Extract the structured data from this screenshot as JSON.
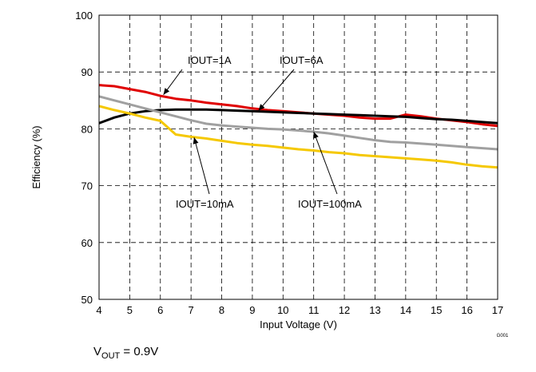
{
  "chart_data": {
    "type": "line",
    "xlabel": "Input Voltage (V)",
    "ylabel": "Efficiency (%)",
    "xlim": [
      4,
      17
    ],
    "ylim": [
      50,
      100
    ],
    "xticks": [
      "4",
      "5",
      "6",
      "7",
      "8",
      "9",
      "10",
      "11",
      "12",
      "13",
      "14",
      "15",
      "16",
      "17"
    ],
    "yticks": [
      "50",
      "60",
      "70",
      "80",
      "90",
      "100"
    ],
    "grid": "dashed",
    "series": [
      {
        "name": "IOUT=1A",
        "color": "#e00000",
        "x": [
          4,
          4.5,
          5,
          5.5,
          6,
          6.5,
          7,
          7.5,
          8,
          8.5,
          9,
          9.5,
          10,
          10.5,
          11,
          11.5,
          12,
          12.5,
          13,
          13.5,
          14,
          14.5,
          15,
          15.5,
          16,
          16.5,
          17
        ],
        "y": [
          87.7,
          87.5,
          87.0,
          86.5,
          85.8,
          85.3,
          85.0,
          84.6,
          84.3,
          84.0,
          83.6,
          83.3,
          83.1,
          82.9,
          82.7,
          82.5,
          82.3,
          82.0,
          81.8,
          81.8,
          82.5,
          82.2,
          81.8,
          81.5,
          81.2,
          80.8,
          80.5
        ]
      },
      {
        "name": "IOUT=6A",
        "color": "#000000",
        "x": [
          4,
          4.5,
          5,
          5.5,
          6,
          6.5,
          7,
          7.5,
          8,
          8.5,
          9,
          9.5,
          10,
          10.5,
          11,
          11.5,
          12,
          12.5,
          13,
          13.5,
          14,
          14.5,
          15,
          15.5,
          16,
          16.5,
          17
        ],
        "y": [
          81.0,
          82.0,
          82.7,
          83.1,
          83.3,
          83.4,
          83.4,
          83.4,
          83.3,
          83.2,
          83.1,
          83.0,
          82.9,
          82.8,
          82.7,
          82.6,
          82.5,
          82.4,
          82.3,
          82.2,
          82.1,
          81.9,
          81.7,
          81.6,
          81.4,
          81.2,
          81.0
        ]
      },
      {
        "name": "IOUT=100mA",
        "color": "#a0a0a0",
        "x": [
          4,
          4.5,
          5,
          5.5,
          6,
          6.5,
          7,
          7.5,
          8,
          8.5,
          9,
          9.5,
          10,
          10.5,
          11,
          11.5,
          12,
          12.5,
          13,
          13.5,
          14,
          14.5,
          15,
          15.5,
          16,
          16.5,
          17
        ],
        "y": [
          85.7,
          85.0,
          84.3,
          83.6,
          82.9,
          82.2,
          81.5,
          80.9,
          80.6,
          80.4,
          80.2,
          80.0,
          79.9,
          79.7,
          79.5,
          79.2,
          78.8,
          78.4,
          78.0,
          77.7,
          77.6,
          77.4,
          77.2,
          77.0,
          76.8,
          76.6,
          76.4
        ]
      },
      {
        "name": "IOUT=10mA",
        "color": "#f5c800",
        "x": [
          4,
          4.5,
          5,
          5.5,
          6,
          6.5,
          7,
          7.5,
          8,
          8.5,
          9,
          9.5,
          10,
          10.5,
          11,
          11.5,
          12,
          12.5,
          13,
          13.5,
          14,
          14.5,
          15,
          15.5,
          16,
          16.5,
          17
        ],
        "y": [
          84.0,
          83.3,
          82.7,
          82.0,
          81.4,
          79.0,
          78.6,
          78.3,
          77.9,
          77.5,
          77.2,
          77.0,
          76.7,
          76.4,
          76.2,
          75.9,
          75.7,
          75.4,
          75.2,
          75.0,
          74.8,
          74.6,
          74.4,
          74.1,
          73.7,
          73.4,
          73.2
        ]
      }
    ],
    "annotations": [
      {
        "text": "IOUT=1A",
        "target": [
          6.1,
          86.0
        ]
      },
      {
        "text": "IOUT=6A",
        "target": [
          9.2,
          83.2
        ]
      },
      {
        "text": "IOUT=10mA",
        "target": [
          7.1,
          78.5
        ]
      },
      {
        "text": "IOUT=100mA",
        "target": [
          11.0,
          79.5
        ]
      }
    ],
    "code": "G001"
  },
  "caption": {
    "prefix": "V",
    "sub": "OUT",
    "suffix": " = 0.9V"
  }
}
